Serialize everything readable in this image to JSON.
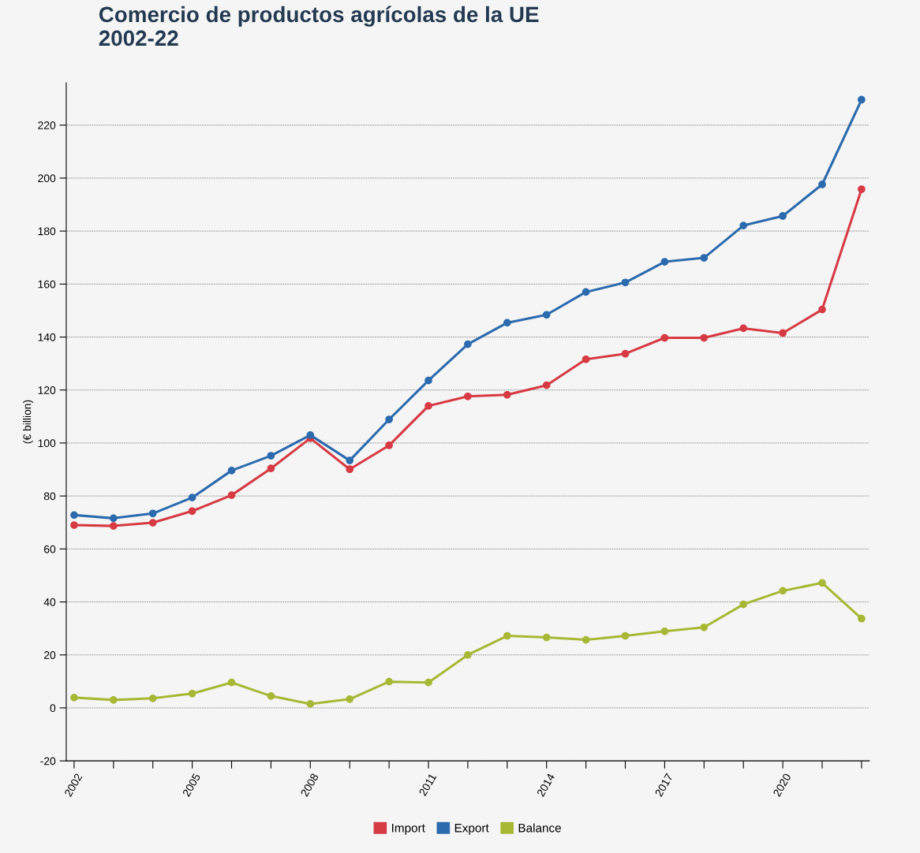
{
  "chart_data": {
    "type": "line",
    "title": "Comercio de productos agrícolas de la UE\n2002-22",
    "ylabel": "(€ billion)",
    "x": [
      2002,
      2003,
      2004,
      2005,
      2006,
      2007,
      2008,
      2009,
      2010,
      2011,
      2012,
      2013,
      2014,
      2015,
      2016,
      2017,
      2018,
      2019,
      2020,
      2021,
      2022
    ],
    "series": [
      {
        "name": "Import",
        "color": "#d63a43",
        "values": [
          69.0,
          68.7,
          69.9,
          74.3,
          80.3,
          90.4,
          101.8,
          90.1,
          99.1,
          114.0,
          117.6,
          118.2,
          121.8,
          131.6,
          133.7,
          139.7,
          139.7,
          143.3,
          141.5,
          150.4,
          195.8
        ]
      },
      {
        "name": "Export",
        "color": "#2b6aad",
        "values": [
          72.8,
          71.6,
          73.4,
          79.4,
          89.6,
          95.2,
          103.0,
          93.4,
          108.9,
          123.6,
          137.3,
          145.4,
          148.4,
          157.0,
          160.6,
          168.4,
          169.9,
          182.1,
          185.7,
          197.6,
          229.6
        ]
      },
      {
        "name": "Balance",
        "color": "#a8b834",
        "values": [
          3.9,
          3.0,
          3.6,
          5.4,
          9.6,
          4.5,
          1.5,
          3.3,
          9.9,
          9.6,
          20.0,
          27.2,
          26.6,
          25.7,
          27.2,
          28.9,
          30.4,
          39.1,
          44.2,
          47.2,
          33.7
        ]
      }
    ],
    "xlim": [
      2001.8,
      2022.2
    ],
    "ylim": [
      -20,
      236
    ],
    "xticks": [
      2002,
      {
        "value": 2003,
        "label": null
      },
      {
        "value": 2004,
        "label": null
      },
      2005,
      {
        "value": 2006,
        "label": null
      },
      {
        "value": 2007,
        "label": null
      },
      2008,
      {
        "value": 2009,
        "label": null
      },
      {
        "value": 2010,
        "label": null
      },
      2011,
      {
        "value": 2012,
        "label": null
      },
      {
        "value": 2013,
        "label": null
      },
      2014,
      {
        "value": 2015,
        "label": null
      },
      {
        "value": 2016,
        "label": null
      },
      2017,
      {
        "value": 2018,
        "label": null
      },
      {
        "value": 2019,
        "label": null
      },
      2020,
      {
        "value": 2021,
        "label": null
      },
      {
        "value": 2022,
        "label": null
      }
    ],
    "yticks": [
      -20,
      0,
      20,
      40,
      60,
      80,
      100,
      120,
      140,
      160,
      180,
      200,
      220
    ],
    "grid": "y",
    "legend": "bottom",
    "marker": "circle",
    "line_style": "solid"
  }
}
